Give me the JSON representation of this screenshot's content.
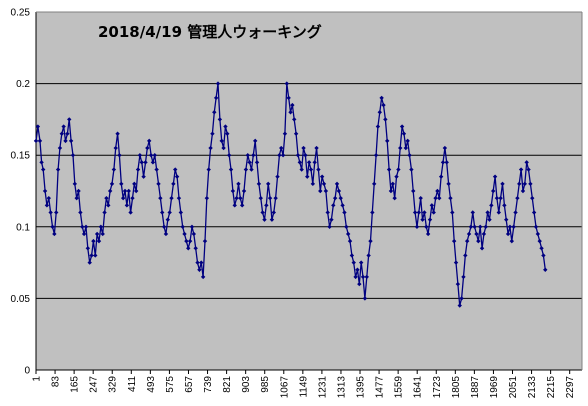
{
  "chart_data": {
    "type": "line",
    "title": "2018/4/19   管理人ウォーキング",
    "xlabel": "",
    "ylabel": "",
    "ylim": [
      0,
      0.25
    ],
    "y_ticks": [
      "0",
      "0.05",
      "0.1",
      "0.15",
      "0.2",
      "0.25"
    ],
    "y_tick_values": [
      0,
      0.05,
      0.1,
      0.15,
      0.2,
      0.25
    ],
    "x_ticks": [
      "1",
      "83",
      "165",
      "247",
      "329",
      "411",
      "493",
      "575",
      "657",
      "739",
      "821",
      "903",
      "985",
      "1067",
      "1149",
      "1231",
      "1313",
      "1395",
      "1477",
      "1559",
      "1641",
      "1723",
      "1805",
      "1887",
      "1969",
      "2051",
      "2133",
      "2215",
      "2297"
    ],
    "x_tick_values": [
      1,
      83,
      165,
      247,
      329,
      411,
      493,
      575,
      657,
      739,
      821,
      903,
      985,
      1067,
      1149,
      1231,
      1313,
      1395,
      1477,
      1559,
      1641,
      1723,
      1805,
      1887,
      1969,
      2051,
      2133,
      2215,
      2297
    ],
    "xlim": [
      1,
      2350
    ],
    "grid": true,
    "legend": "none",
    "colors": {
      "plot_bg": "#c0c0c0",
      "line": "#000080",
      "marker": "#000080",
      "grid": "#000000"
    },
    "series": [
      {
        "values": [
          [
            1,
            0.16
          ],
          [
            9,
            0.17
          ],
          [
            18,
            0.16
          ],
          [
            25,
            0.145
          ],
          [
            32,
            0.14
          ],
          [
            40,
            0.125
          ],
          [
            48,
            0.115
          ],
          [
            56,
            0.12
          ],
          [
            64,
            0.11
          ],
          [
            72,
            0.1
          ],
          [
            80,
            0.095
          ],
          [
            88,
            0.11
          ],
          [
            96,
            0.14
          ],
          [
            104,
            0.155
          ],
          [
            112,
            0.165
          ],
          [
            120,
            0.17
          ],
          [
            128,
            0.16
          ],
          [
            136,
            0.165
          ],
          [
            144,
            0.175
          ],
          [
            152,
            0.16
          ],
          [
            160,
            0.15
          ],
          [
            168,
            0.13
          ],
          [
            176,
            0.12
          ],
          [
            184,
            0.125
          ],
          [
            192,
            0.11
          ],
          [
            200,
            0.1
          ],
          [
            208,
            0.095
          ],
          [
            216,
            0.1
          ],
          [
            224,
            0.085
          ],
          [
            232,
            0.075
          ],
          [
            240,
            0.08
          ],
          [
            248,
            0.09
          ],
          [
            256,
            0.08
          ],
          [
            264,
            0.095
          ],
          [
            272,
            0.09
          ],
          [
            280,
            0.1
          ],
          [
            288,
            0.095
          ],
          [
            296,
            0.11
          ],
          [
            304,
            0.12
          ],
          [
            312,
            0.115
          ],
          [
            320,
            0.125
          ],
          [
            328,
            0.13
          ],
          [
            336,
            0.14
          ],
          [
            344,
            0.155
          ],
          [
            352,
            0.165
          ],
          [
            360,
            0.15
          ],
          [
            368,
            0.13
          ],
          [
            376,
            0.12
          ],
          [
            384,
            0.125
          ],
          [
            392,
            0.115
          ],
          [
            400,
            0.125
          ],
          [
            408,
            0.11
          ],
          [
            416,
            0.12
          ],
          [
            424,
            0.13
          ],
          [
            432,
            0.125
          ],
          [
            440,
            0.14
          ],
          [
            448,
            0.15
          ],
          [
            456,
            0.145
          ],
          [
            464,
            0.135
          ],
          [
            472,
            0.145
          ],
          [
            480,
            0.155
          ],
          [
            488,
            0.16
          ],
          [
            496,
            0.15
          ],
          [
            504,
            0.145
          ],
          [
            512,
            0.15
          ],
          [
            520,
            0.14
          ],
          [
            528,
            0.13
          ],
          [
            536,
            0.12
          ],
          [
            544,
            0.11
          ],
          [
            552,
            0.1
          ],
          [
            560,
            0.095
          ],
          [
            568,
            0.105
          ],
          [
            576,
            0.11
          ],
          [
            584,
            0.12
          ],
          [
            592,
            0.13
          ],
          [
            600,
            0.14
          ],
          [
            608,
            0.135
          ],
          [
            616,
            0.12
          ],
          [
            624,
            0.11
          ],
          [
            632,
            0.1
          ],
          [
            640,
            0.095
          ],
          [
            648,
            0.09
          ],
          [
            656,
            0.085
          ],
          [
            664,
            0.09
          ],
          [
            672,
            0.1
          ],
          [
            680,
            0.095
          ],
          [
            688,
            0.085
          ],
          [
            696,
            0.075
          ],
          [
            704,
            0.07
          ],
          [
            712,
            0.075
          ],
          [
            720,
            0.065
          ],
          [
            728,
            0.09
          ],
          [
            736,
            0.12
          ],
          [
            744,
            0.14
          ],
          [
            752,
            0.155
          ],
          [
            760,
            0.165
          ],
          [
            768,
            0.18
          ],
          [
            776,
            0.19
          ],
          [
            784,
            0.2
          ],
          [
            792,
            0.175
          ],
          [
            800,
            0.16
          ],
          [
            808,
            0.155
          ],
          [
            816,
            0.17
          ],
          [
            824,
            0.165
          ],
          [
            832,
            0.15
          ],
          [
            840,
            0.14
          ],
          [
            848,
            0.125
          ],
          [
            856,
            0.115
          ],
          [
            864,
            0.12
          ],
          [
            872,
            0.13
          ],
          [
            880,
            0.12
          ],
          [
            888,
            0.115
          ],
          [
            896,
            0.125
          ],
          [
            904,
            0.14
          ],
          [
            912,
            0.15
          ],
          [
            920,
            0.145
          ],
          [
            928,
            0.14
          ],
          [
            936,
            0.15
          ],
          [
            944,
            0.16
          ],
          [
            952,
            0.145
          ],
          [
            960,
            0.13
          ],
          [
            968,
            0.12
          ],
          [
            976,
            0.11
          ],
          [
            984,
            0.105
          ],
          [
            992,
            0.115
          ],
          [
            1000,
            0.13
          ],
          [
            1008,
            0.12
          ],
          [
            1016,
            0.105
          ],
          [
            1024,
            0.11
          ],
          [
            1032,
            0.12
          ],
          [
            1040,
            0.135
          ],
          [
            1048,
            0.15
          ],
          [
            1056,
            0.155
          ],
          [
            1064,
            0.15
          ],
          [
            1072,
            0.165
          ],
          [
            1080,
            0.2
          ],
          [
            1088,
            0.19
          ],
          [
            1096,
            0.18
          ],
          [
            1104,
            0.185
          ],
          [
            1112,
            0.175
          ],
          [
            1120,
            0.165
          ],
          [
            1128,
            0.15
          ],
          [
            1136,
            0.145
          ],
          [
            1144,
            0.14
          ],
          [
            1152,
            0.155
          ],
          [
            1160,
            0.15
          ],
          [
            1168,
            0.135
          ],
          [
            1176,
            0.145
          ],
          [
            1184,
            0.14
          ],
          [
            1192,
            0.13
          ],
          [
            1200,
            0.145
          ],
          [
            1208,
            0.155
          ],
          [
            1216,
            0.14
          ],
          [
            1224,
            0.125
          ],
          [
            1232,
            0.135
          ],
          [
            1240,
            0.13
          ],
          [
            1248,
            0.125
          ],
          [
            1256,
            0.11
          ],
          [
            1264,
            0.1
          ],
          [
            1272,
            0.105
          ],
          [
            1280,
            0.115
          ],
          [
            1288,
            0.12
          ],
          [
            1296,
            0.13
          ],
          [
            1304,
            0.125
          ],
          [
            1312,
            0.12
          ],
          [
            1320,
            0.115
          ],
          [
            1328,
            0.11
          ],
          [
            1336,
            0.1
          ],
          [
            1344,
            0.095
          ],
          [
            1352,
            0.09
          ],
          [
            1360,
            0.08
          ],
          [
            1368,
            0.075
          ],
          [
            1376,
            0.065
          ],
          [
            1384,
            0.07
          ],
          [
            1392,
            0.06
          ],
          [
            1400,
            0.075
          ],
          [
            1408,
            0.065
          ],
          [
            1416,
            0.05
          ],
          [
            1424,
            0.065
          ],
          [
            1432,
            0.08
          ],
          [
            1440,
            0.09
          ],
          [
            1448,
            0.11
          ],
          [
            1456,
            0.13
          ],
          [
            1464,
            0.15
          ],
          [
            1472,
            0.17
          ],
          [
            1480,
            0.18
          ],
          [
            1488,
            0.19
          ],
          [
            1496,
            0.185
          ],
          [
            1504,
            0.175
          ],
          [
            1512,
            0.16
          ],
          [
            1520,
            0.14
          ],
          [
            1528,
            0.125
          ],
          [
            1536,
            0.13
          ],
          [
            1544,
            0.12
          ],
          [
            1552,
            0.135
          ],
          [
            1560,
            0.14
          ],
          [
            1568,
            0.155
          ],
          [
            1576,
            0.17
          ],
          [
            1584,
            0.165
          ],
          [
            1592,
            0.155
          ],
          [
            1600,
            0.16
          ],
          [
            1608,
            0.15
          ],
          [
            1616,
            0.14
          ],
          [
            1624,
            0.125
          ],
          [
            1632,
            0.11
          ],
          [
            1640,
            0.1
          ],
          [
            1648,
            0.11
          ],
          [
            1656,
            0.12
          ],
          [
            1664,
            0.105
          ],
          [
            1672,
            0.11
          ],
          [
            1680,
            0.1
          ],
          [
            1688,
            0.095
          ],
          [
            1696,
            0.105
          ],
          [
            1704,
            0.115
          ],
          [
            1712,
            0.11
          ],
          [
            1720,
            0.12
          ],
          [
            1728,
            0.125
          ],
          [
            1736,
            0.12
          ],
          [
            1744,
            0.135
          ],
          [
            1752,
            0.145
          ],
          [
            1760,
            0.155
          ],
          [
            1768,
            0.145
          ],
          [
            1776,
            0.13
          ],
          [
            1784,
            0.12
          ],
          [
            1792,
            0.11
          ],
          [
            1800,
            0.09
          ],
          [
            1808,
            0.075
          ],
          [
            1816,
            0.06
          ],
          [
            1824,
            0.045
          ],
          [
            1832,
            0.05
          ],
          [
            1840,
            0.065
          ],
          [
            1848,
            0.08
          ],
          [
            1856,
            0.09
          ],
          [
            1864,
            0.095
          ],
          [
            1872,
            0.1
          ],
          [
            1880,
            0.11
          ],
          [
            1888,
            0.1
          ],
          [
            1896,
            0.095
          ],
          [
            1904,
            0.09
          ],
          [
            1912,
            0.1
          ],
          [
            1920,
            0.085
          ],
          [
            1928,
            0.095
          ],
          [
            1936,
            0.1
          ],
          [
            1944,
            0.11
          ],
          [
            1952,
            0.105
          ],
          [
            1960,
            0.115
          ],
          [
            1968,
            0.125
          ],
          [
            1976,
            0.135
          ],
          [
            1984,
            0.12
          ],
          [
            1992,
            0.11
          ],
          [
            2000,
            0.12
          ],
          [
            2008,
            0.13
          ],
          [
            2016,
            0.115
          ],
          [
            2024,
            0.105
          ],
          [
            2032,
            0.095
          ],
          [
            2040,
            0.1
          ],
          [
            2048,
            0.09
          ],
          [
            2056,
            0.1
          ],
          [
            2064,
            0.11
          ],
          [
            2072,
            0.12
          ],
          [
            2080,
            0.13
          ],
          [
            2088,
            0.14
          ],
          [
            2096,
            0.125
          ],
          [
            2104,
            0.13
          ],
          [
            2112,
            0.145
          ],
          [
            2120,
            0.14
          ],
          [
            2128,
            0.13
          ],
          [
            2136,
            0.12
          ],
          [
            2144,
            0.11
          ],
          [
            2152,
            0.1
          ],
          [
            2160,
            0.095
          ],
          [
            2168,
            0.09
          ],
          [
            2176,
            0.085
          ],
          [
            2184,
            0.08
          ],
          [
            2192,
            0.07
          ]
        ]
      }
    ]
  }
}
